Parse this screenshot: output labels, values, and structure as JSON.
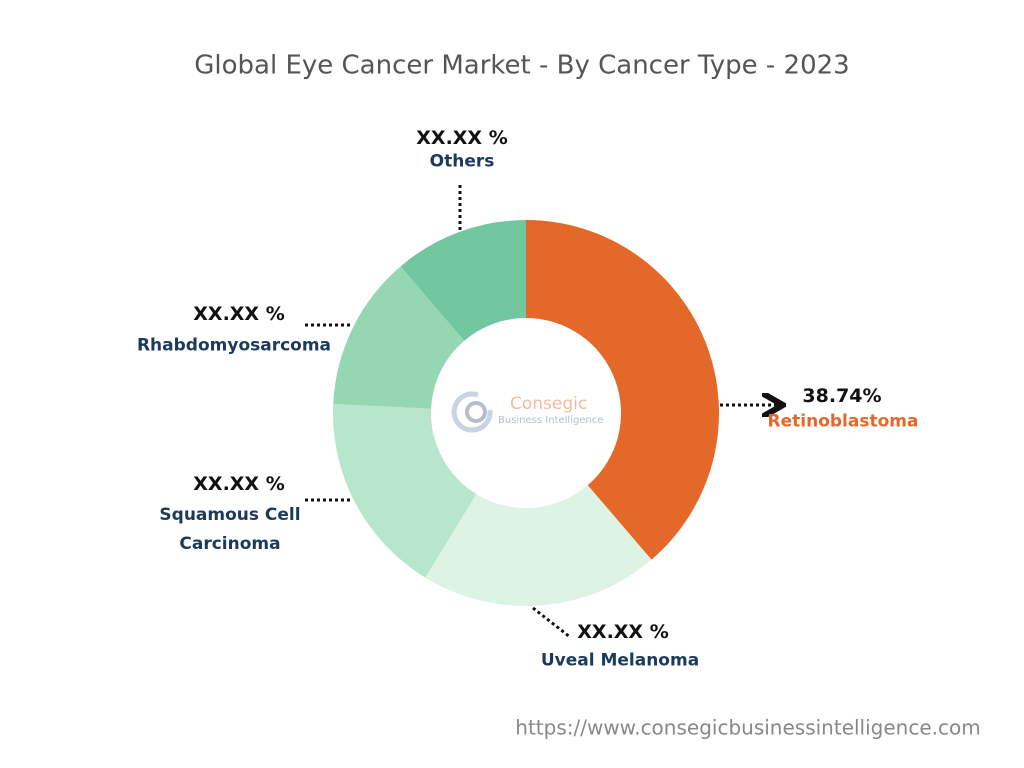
{
  "chart_data": {
    "type": "pie",
    "title": "Global Eye Cancer Market - By Cancer Type - 2023",
    "categories": [
      "Retinoblastoma",
      "Uveal Melanoma",
      "Squamous Cell Carcinoma",
      "Rhabdomyosarcoma",
      "Others"
    ],
    "values": [
      38.74,
      20,
      17,
      13,
      11.26
    ],
    "value_labels": [
      "38.74%",
      "XX.XX %",
      "XX.XX %",
      "XX.XX %",
      "XX.XX %"
    ],
    "colors": [
      "#e4682a",
      "#ddf3e3",
      "#b8e6cd",
      "#95d6b3",
      "#72c6a0"
    ],
    "watermark_name": "Consegic",
    "watermark_tagline": "Business Intelligence",
    "source": "https://www.consegicbusinessintelligence.com"
  }
}
